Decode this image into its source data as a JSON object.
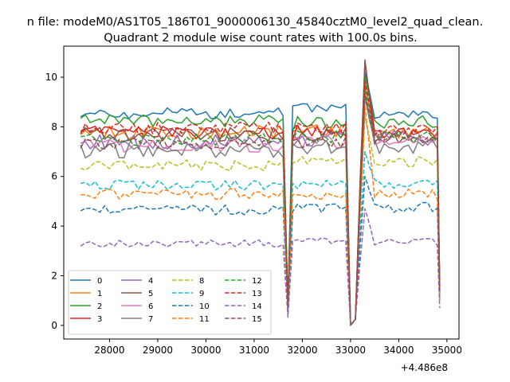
{
  "chart_data": {
    "type": "line",
    "suptitle": "n file: modeM0/AS1T05_186T01_9000006130_45840cztM0_level2_quad_clean.",
    "title": "Quadrant 2 module wise count rates with 100.0s bins.",
    "xlabel": "",
    "ylabel": "",
    "x_offset_label": "+4.486e8",
    "xlim": [
      27050,
      35250
    ],
    "ylim": [
      -0.55,
      11.25
    ],
    "xticks": [
      28000,
      29000,
      30000,
      31000,
      32000,
      33000,
      34000,
      35000
    ],
    "xtick_labels": [
      "28000",
      "29000",
      "30000",
      "31000",
      "32000",
      "33000",
      "34000",
      "35000"
    ],
    "yticks": [
      0,
      2,
      4,
      6,
      8,
      10
    ],
    "ytick_labels": [
      "0",
      "2",
      "4",
      "6",
      "8",
      "10"
    ],
    "grid": false,
    "legend_position": "lower-left",
    "legend_columns": 4,
    "x_segments": [
      {
        "start": 27400,
        "end": 31600,
        "step": 100
      },
      {
        "start": 31700,
        "end": 31700,
        "step": 100
      },
      {
        "start": 31800,
        "end": 32900,
        "step": 100
      },
      {
        "start": 33000,
        "end": 33200,
        "step": 100
      },
      {
        "start": 33300,
        "end": 34800,
        "step": 100
      },
      {
        "start": 34850,
        "end": 34850,
        "step": 100
      }
    ],
    "series": [
      {
        "name": "0",
        "color": "#1f77b4",
        "dash": "solid",
        "level": 8.55,
        "noise": 0.22,
        "seg2": 8.8,
        "peak": 10.2,
        "seg5": 8.45,
        "end": 1.6
      },
      {
        "name": "1",
        "color": "#ff7f0e",
        "dash": "solid",
        "level": 7.75,
        "noise": 0.3,
        "seg2": 7.9,
        "peak": 9.7,
        "seg5": 7.75,
        "end": 1.5
      },
      {
        "name": "2",
        "color": "#2ca02c",
        "dash": "solid",
        "level": 8.25,
        "noise": 0.25,
        "seg2": 8.2,
        "peak": 10.0,
        "seg5": 8.2,
        "end": 1.5
      },
      {
        "name": "3",
        "color": "#d62728",
        "dash": "solid",
        "level": 7.75,
        "noise": 0.28,
        "seg2": 7.8,
        "peak": 10.6,
        "seg5": 7.7,
        "end": 1.4
      },
      {
        "name": "4",
        "color": "#9467bd",
        "dash": "solid",
        "level": 7.4,
        "noise": 0.3,
        "seg2": 7.5,
        "peak": 9.3,
        "seg5": 7.55,
        "end": 1.4
      },
      {
        "name": "5",
        "color": "#8c564b",
        "dash": "solid",
        "level": 7.7,
        "noise": 0.28,
        "seg2": 7.7,
        "peak": 10.7,
        "seg5": 7.5,
        "end": 1.3
      },
      {
        "name": "6",
        "color": "#e377c2",
        "dash": "solid",
        "level": 7.25,
        "noise": 0.28,
        "seg2": 7.4,
        "peak": 9.4,
        "seg5": 7.35,
        "end": 1.3
      },
      {
        "name": "7",
        "color": "#7f7f7f",
        "dash": "solid",
        "level": 7.05,
        "noise": 0.3,
        "seg2": 7.2,
        "peak": 9.2,
        "seg5": 7.2,
        "end": 1.3
      },
      {
        "name": "8",
        "color": "#bcbd22",
        "dash": "dashed",
        "level": 6.45,
        "noise": 0.22,
        "seg2": 6.6,
        "peak": 8.4,
        "seg5": 6.6,
        "end": 1.2
      },
      {
        "name": "9",
        "color": "#17becf",
        "dash": "dashed",
        "level": 5.65,
        "noise": 0.2,
        "seg2": 5.7,
        "peak": 7.0,
        "seg5": 5.7,
        "end": 1.1
      },
      {
        "name": "10",
        "color": "#1f77b4",
        "dash": "dashed",
        "level": 4.65,
        "noise": 0.2,
        "seg2": 4.7,
        "peak": 6.0,
        "seg5": 4.75,
        "end": 1.0
      },
      {
        "name": "11",
        "color": "#ff7f0e",
        "dash": "dashed",
        "level": 5.3,
        "noise": 0.22,
        "seg2": 5.3,
        "peak": 8.8,
        "seg5": 5.3,
        "end": 1.0
      },
      {
        "name": "12",
        "color": "#2ca02c",
        "dash": "dashed",
        "level": 7.5,
        "noise": 0.25,
        "seg2": 7.6,
        "peak": 9.5,
        "seg5": 7.6,
        "end": 1.4
      },
      {
        "name": "13",
        "color": "#d62728",
        "dash": "dashed",
        "level": 7.95,
        "noise": 0.25,
        "seg2": 8.0,
        "peak": 9.8,
        "seg5": 7.9,
        "end": 1.4
      },
      {
        "name": "14",
        "color": "#9467bd",
        "dash": "dashed",
        "level": 3.3,
        "noise": 0.15,
        "seg2": 3.4,
        "peak": 4.7,
        "seg5": 3.35,
        "end": 0.7
      },
      {
        "name": "15",
        "color": "#8c564b",
        "dash": "dashed",
        "level": 7.35,
        "noise": 0.25,
        "seg2": 7.4,
        "peak": 9.3,
        "seg5": 7.5,
        "end": 1.3
      }
    ]
  }
}
